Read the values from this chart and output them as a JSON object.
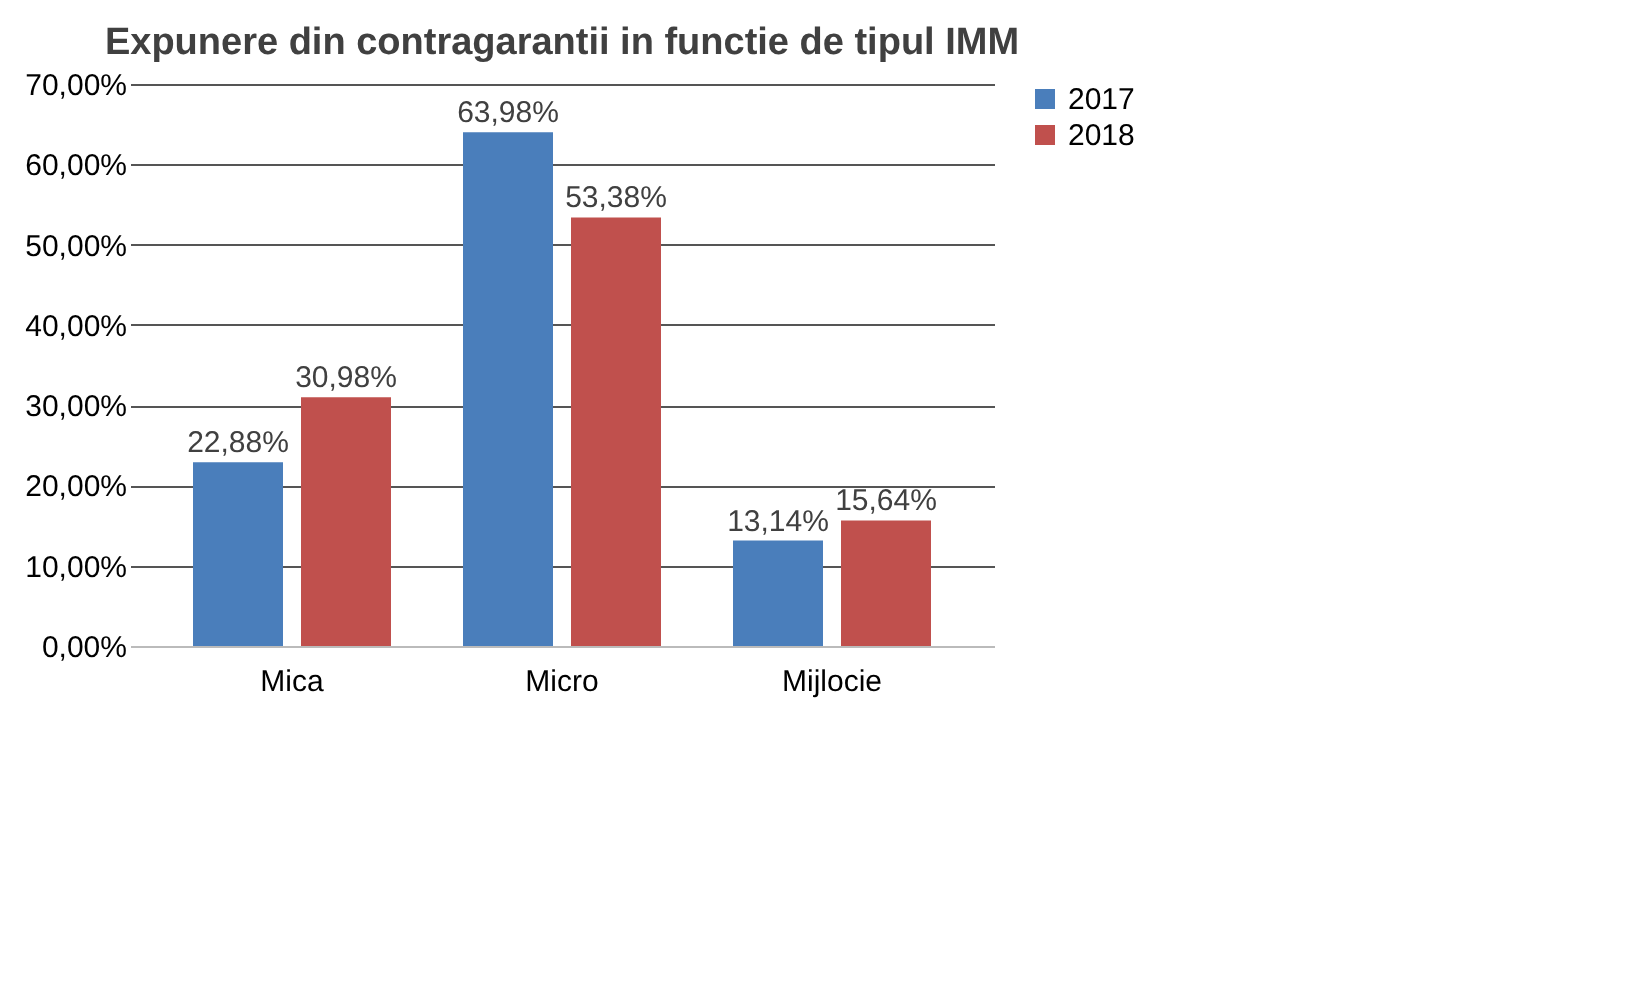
{
  "chart_data": {
    "type": "bar",
    "title": "Expunere din contragarantii in functie de tipul IMM",
    "categories": [
      "Mica",
      "Micro",
      "Mijlocie"
    ],
    "series": [
      {
        "name": "2017",
        "color": "#4a7ebb",
        "values": [
          22.88,
          63.98,
          13.14
        ],
        "value_labels": [
          "22,88%",
          "63,98%",
          "13,14%"
        ]
      },
      {
        "name": "2018",
        "color": "#c0504d",
        "values": [
          30.98,
          53.38,
          15.64
        ],
        "value_labels": [
          "30,98%",
          "53,38%",
          "15,64%"
        ]
      }
    ],
    "ylim": [
      0,
      70
    ],
    "yticks": [
      {
        "value": 0,
        "label": "0,00%"
      },
      {
        "value": 10,
        "label": "10,00%"
      },
      {
        "value": 20,
        "label": "20,00%"
      },
      {
        "value": 30,
        "label": "30,00%"
      },
      {
        "value": 40,
        "label": "40,00%"
      },
      {
        "value": 50,
        "label": "50,00%"
      },
      {
        "value": 60,
        "label": "60,00%"
      },
      {
        "value": 70,
        "label": "70,00%"
      }
    ],
    "grid": "y",
    "legend": "right"
  }
}
